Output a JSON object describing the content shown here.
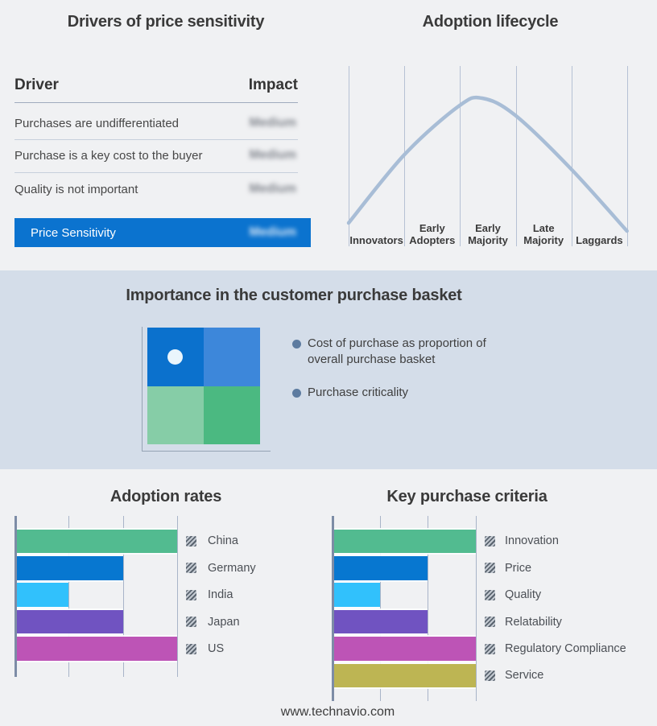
{
  "page": {
    "footer_url": "www.technavio.com",
    "background_color": "#f0f1f3",
    "band_background_color": "#d4dde9"
  },
  "price_sensitivity_table": {
    "title": "Drivers of price sensitivity",
    "columns": {
      "driver": "Driver",
      "impact": "Impact"
    },
    "rows": [
      {
        "driver": "Purchases are undifferentiated",
        "impact": "Medium"
      },
      {
        "driver": "Purchase is a key cost to the buyer",
        "impact": "Medium"
      },
      {
        "driver": "Quality is not important",
        "impact": "Medium"
      }
    ],
    "summary_row": {
      "label": "Price Sensitivity",
      "impact": "Medium",
      "color": "#0b73cf"
    },
    "impact_values_blurred": true
  },
  "basket": {
    "title": "Importance in the customer purchase basket",
    "bullets": [
      "Cost of purchase as proportion of overall purchase basket",
      "Purchase criticality"
    ],
    "matrix_colors": {
      "top_left": "#0b71cd",
      "top_right": "#3d87da",
      "bottom_left": "#86cda7",
      "bottom_right": "#4bb981"
    },
    "marker": "white dot in top-left quadrant"
  },
  "chart_data": [
    {
      "id": "adoption_lifecycle",
      "type": "line",
      "title": "Adoption lifecycle",
      "x_categories": [
        "Innovators",
        "Early Adopters",
        "Early Majority",
        "Late Majority",
        "Laggards"
      ],
      "shape": "bell curve peaking at Early Majority",
      "line_color": "#a8bdd6",
      "grid": "vertical category separators"
    },
    {
      "id": "adoption_rates",
      "type": "bar",
      "orientation": "horizontal",
      "title": "Adoption rates",
      "categories": [
        "China",
        "Germany",
        "India",
        "Japan",
        "US"
      ],
      "values": [
        3,
        2,
        1,
        2,
        3
      ],
      "xlim": [
        0,
        3
      ],
      "value_note": "relative length in gridline units (no numeric axis labels shown)",
      "colors": [
        "#52bb90",
        "#0777d0",
        "#31c1fc",
        "#7053c1",
        "#bd54b6"
      ],
      "legend_position": "right",
      "grid": "vertical"
    },
    {
      "id": "key_purchase_criteria",
      "type": "bar",
      "orientation": "horizontal",
      "title": "Key purchase criteria",
      "categories": [
        "Innovation",
        "Price",
        "Quality",
        "Relatability",
        "Regulatory Compliance",
        "Service"
      ],
      "values": [
        3,
        2,
        1,
        2,
        3,
        3
      ],
      "xlim": [
        0,
        3
      ],
      "value_note": "relative length in gridline units (no numeric axis labels shown)",
      "colors": [
        "#52bb90",
        "#0777d0",
        "#31c1fc",
        "#7053c1",
        "#bd54b6",
        "#bdb553"
      ],
      "legend_position": "right",
      "grid": "vertical"
    }
  ]
}
